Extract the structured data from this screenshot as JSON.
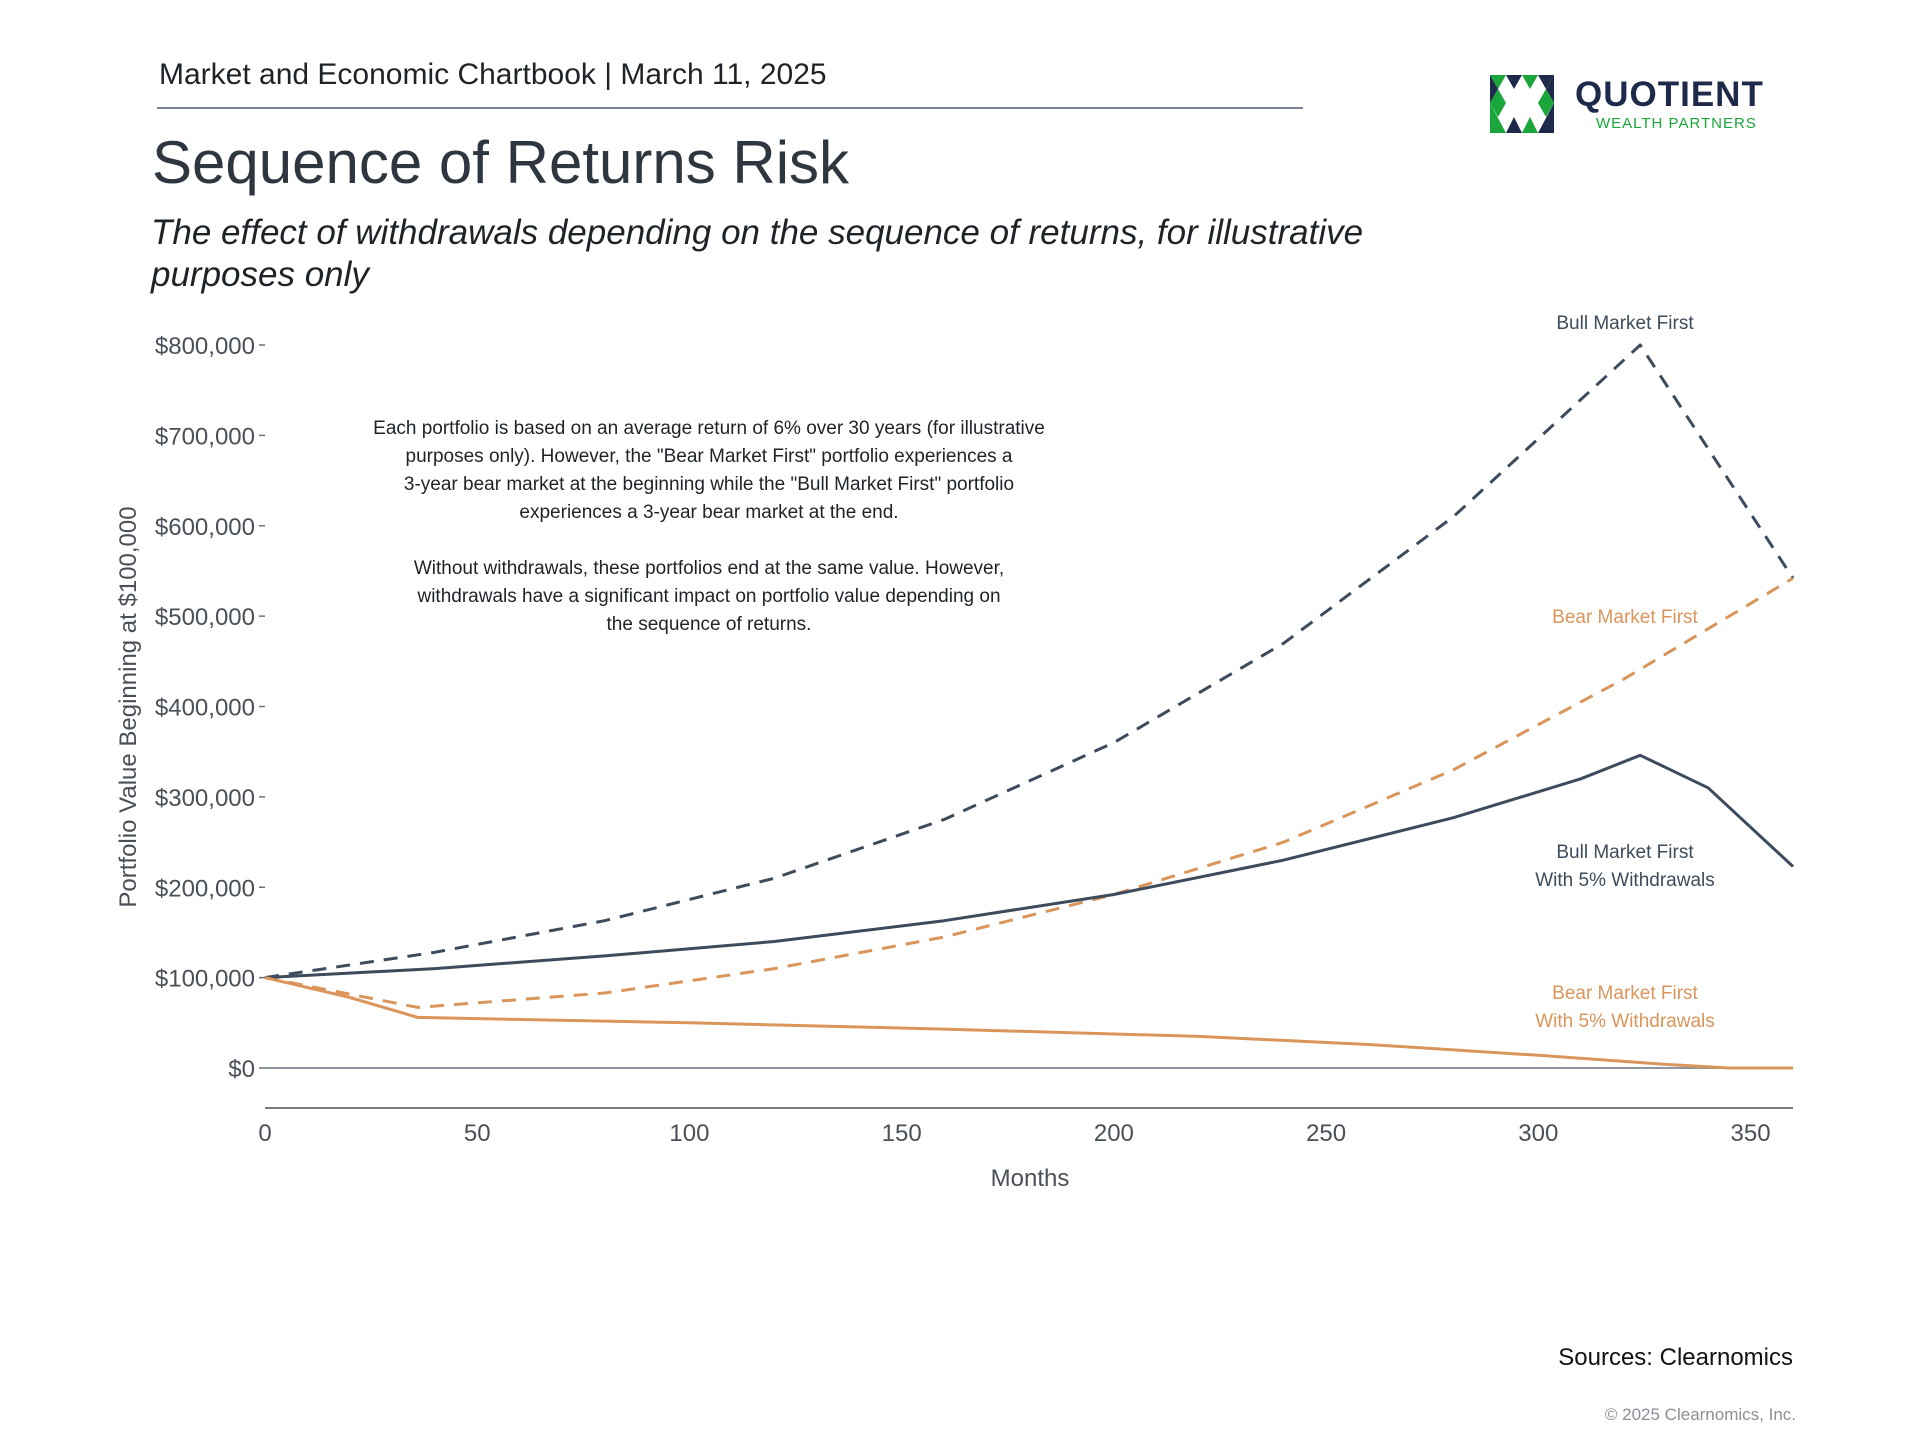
{
  "header": {
    "chartbook": "Market and Economic Chartbook | March 11, 2025"
  },
  "logo": {
    "name": "QUOTIENT",
    "tagline": "WEALTH PARTNERS",
    "colors": {
      "navy": "#1f2a4a",
      "green": "#1aa63a"
    }
  },
  "title": "Sequence of Returns Risk",
  "subtitle": "The effect of withdrawals depending on the sequence of returns, for illustrative purposes only",
  "footer": {
    "sources": "Sources: Clearnomics",
    "copyright": "© 2025 Clearnomics, Inc."
  },
  "chart_data": {
    "type": "line",
    "xlabel": "Months",
    "ylabel": "Portfolio Value Beginning at $100,000",
    "xlim": [
      0,
      360
    ],
    "ylim": [
      0,
      800000
    ],
    "x_ticks": [
      0,
      50,
      100,
      150,
      200,
      250,
      300,
      350
    ],
    "x_tick_labels": [
      "0",
      "50",
      "100",
      "150",
      "200",
      "250",
      "300",
      "350"
    ],
    "y_ticks": [
      0,
      100000,
      200000,
      300000,
      400000,
      500000,
      600000,
      700000,
      800000
    ],
    "y_tick_labels": [
      "$0",
      "$100,000",
      "$200,000",
      "$300,000",
      "$400,000",
      "$500,000",
      "$600,000",
      "$700,000",
      "$800,000"
    ],
    "grid": false,
    "legend": "direct-labels",
    "annotation": [
      "Each portfolio is based on an average return of 6% over 30 years (for illustrative",
      "purposes only). However, the \"Bear Market First\" portfolio experiences a",
      "3-year bear market at the beginning while the \"Bull Market First\" portfolio",
      "experiences a 3-year bear market at the end.",
      "",
      "Without withdrawals, these portfolios end at the same value. However,",
      "withdrawals have a significant impact on portfolio value depending on",
      "the sequence of returns."
    ],
    "series": [
      {
        "name": "Bull Market First",
        "label_lines": [
          "Bull Market First"
        ],
        "color": "#3d4c5c",
        "dash": true,
        "points": [
          [
            0,
            100000
          ],
          [
            40,
            128000
          ],
          [
            80,
            163000
          ],
          [
            120,
            210000
          ],
          [
            160,
            275000
          ],
          [
            200,
            360000
          ],
          [
            240,
            470000
          ],
          [
            280,
            610000
          ],
          [
            324,
            800000
          ],
          [
            360,
            542000
          ]
        ]
      },
      {
        "name": "Bear Market First",
        "label_lines": [
          "Bear Market First"
        ],
        "color": "#d9955a",
        "dash": true,
        "points": [
          [
            0,
            100000
          ],
          [
            36,
            67000
          ],
          [
            80,
            83000
          ],
          [
            120,
            110000
          ],
          [
            160,
            145000
          ],
          [
            200,
            192000
          ],
          [
            240,
            250000
          ],
          [
            280,
            330000
          ],
          [
            320,
            430000
          ],
          [
            360,
            542000
          ]
        ]
      },
      {
        "name": "Bull Market First With 5% Withdrawals",
        "label_lines": [
          "Bull Market First",
          "With 5% Withdrawals"
        ],
        "color": "#3d4c5c",
        "dash": false,
        "points": [
          [
            0,
            100000
          ],
          [
            40,
            110000
          ],
          [
            80,
            124000
          ],
          [
            120,
            140000
          ],
          [
            160,
            163000
          ],
          [
            200,
            192000
          ],
          [
            240,
            230000
          ],
          [
            280,
            277000
          ],
          [
            310,
            320000
          ],
          [
            324,
            346000
          ],
          [
            340,
            310000
          ],
          [
            360,
            223000
          ]
        ]
      },
      {
        "name": "Bear Market First With 5% Withdrawals",
        "label_lines": [
          "Bear Market First",
          "With 5% Withdrawals"
        ],
        "color": "#d9955a",
        "dash": false,
        "points": [
          [
            0,
            100000
          ],
          [
            20,
            78000
          ],
          [
            36,
            56000
          ],
          [
            100,
            50000
          ],
          [
            160,
            43000
          ],
          [
            220,
            35000
          ],
          [
            260,
            26000
          ],
          [
            300,
            14000
          ],
          [
            330,
            4000
          ],
          [
            345,
            0
          ],
          [
            360,
            0
          ]
        ]
      }
    ]
  }
}
